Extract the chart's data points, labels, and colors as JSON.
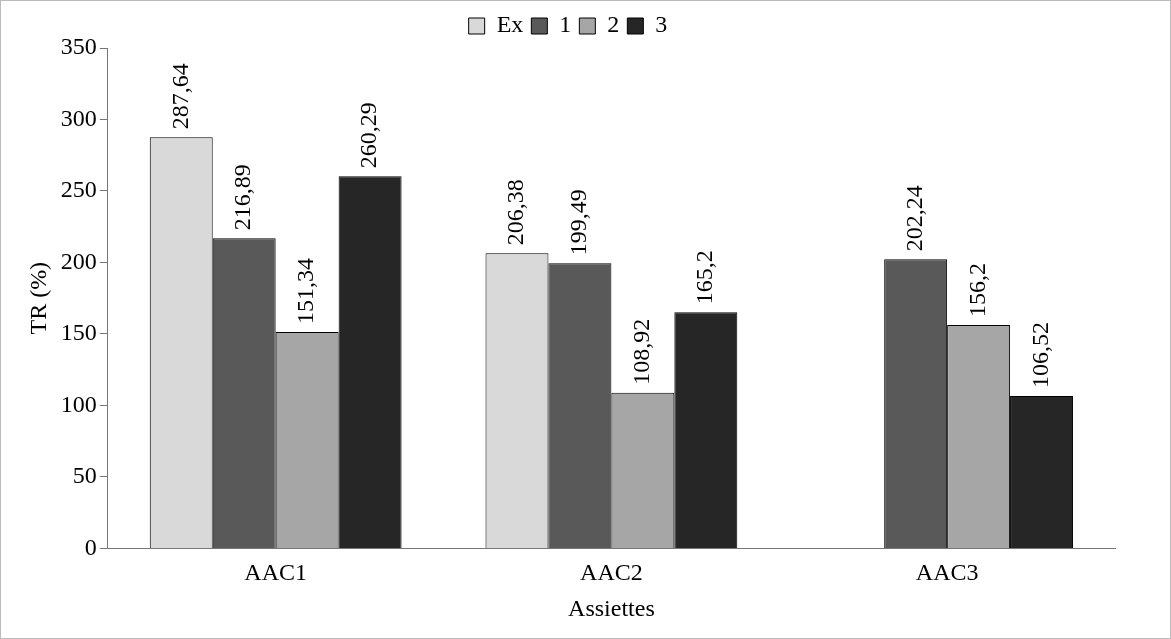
{
  "chart_data": {
    "type": "bar",
    "xlabel": "Assiettes",
    "ylabel": "TR (%)",
    "categories": [
      "AAC1",
      "AAC2",
      "AAC3"
    ],
    "series": [
      {
        "name": "Ex",
        "color": "#d9d9d9",
        "values": [
          287.64,
          206.38,
          null
        ],
        "value_labels": [
          "287,64",
          "206,38",
          null
        ]
      },
      {
        "name": "1",
        "color": "#595959",
        "values": [
          216.89,
          199.49,
          202.24
        ],
        "value_labels": [
          "216,89",
          "199,49",
          "202,24"
        ]
      },
      {
        "name": "2",
        "color": "#a6a6a6",
        "values": [
          151.34,
          108.92,
          156.2
        ],
        "value_labels": [
          "151,34",
          "108,92",
          "156,2"
        ]
      },
      {
        "name": "3",
        "color": "#262626",
        "values": [
          260.29,
          165.2,
          106.52
        ],
        "value_labels": [
          "260,29",
          "165,2",
          "106,52"
        ]
      }
    ],
    "ylim": [
      0,
      350
    ],
    "yticks": [
      0,
      50,
      100,
      150,
      200,
      250,
      300,
      350
    ],
    "grid": false,
    "legend": "top"
  }
}
